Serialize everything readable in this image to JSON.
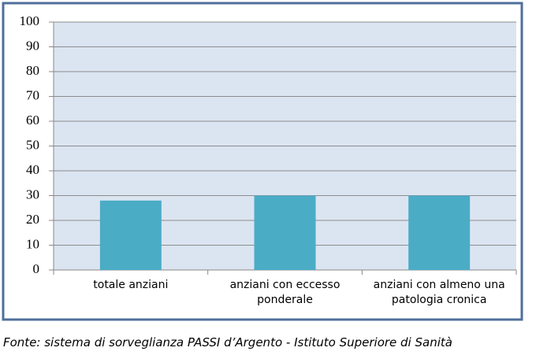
{
  "chart_data": {
    "type": "bar",
    "categories": [
      "totale anziani",
      "anziani con eccesso ponderale",
      "anziani con almeno una patologia cronica"
    ],
    "values": [
      28,
      30,
      30
    ],
    "color": "#4bacc6",
    "ylim": [
      0,
      100
    ],
    "yticks": [
      0,
      10,
      20,
      30,
      40,
      50,
      60,
      70,
      80,
      90,
      100
    ],
    "grid": true
  },
  "source": "Fonte: sistema di sorveglianza PASSI d’Argento - Istituto Superiore di Sanità"
}
